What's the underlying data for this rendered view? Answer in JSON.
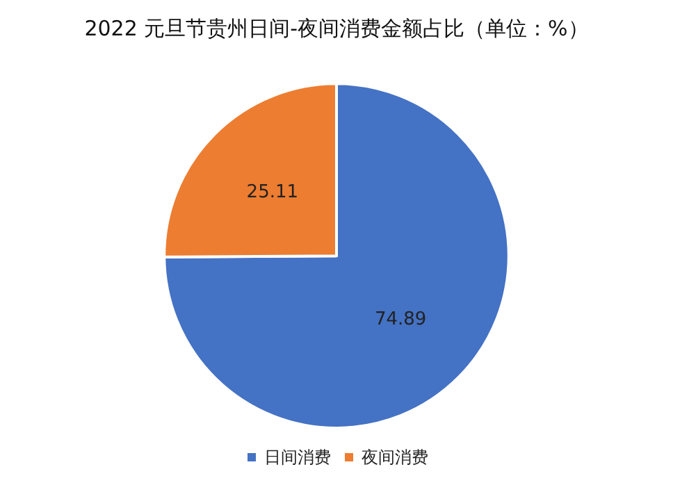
{
  "chart_data": {
    "type": "pie",
    "title": "2022 元旦节贵州日间-夜间消费金额占比（单位：%）",
    "categories": [
      "日间消费",
      "夜间消费"
    ],
    "values": [
      74.89,
      25.11
    ],
    "colors": [
      "#4472c4",
      "#ed7d31"
    ],
    "data_labels": true,
    "legend": "bottom"
  }
}
